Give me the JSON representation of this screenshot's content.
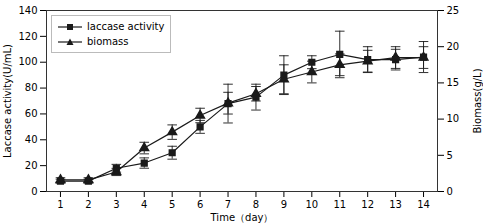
{
  "chart_data": {
    "type": "line",
    "x": [
      1,
      2,
      3,
      4,
      5,
      6,
      7,
      8,
      9,
      10,
      11,
      12,
      13,
      14
    ],
    "xlim": [
      0.5,
      14.5
    ],
    "xticks": [
      1,
      2,
      3,
      4,
      5,
      6,
      7,
      8,
      9,
      10,
      11,
      12,
      13,
      14
    ],
    "xlabel": "Time（day）",
    "ylabel": "Laccase activity(U/mL)",
    "y2label": "Biomass(g/L)",
    "ylim": [
      0,
      140
    ],
    "yticks": [
      0,
      20,
      40,
      60,
      80,
      100,
      120,
      140
    ],
    "y2lim": [
      0,
      25
    ],
    "y2ticks": [
      0,
      5,
      10,
      15,
      20,
      25
    ],
    "grid": false,
    "legend": "upper left",
    "series": [
      {
        "name": "laccase activity",
        "color": "#1a1a1a",
        "marker": "square",
        "values": [
          8,
          8,
          18,
          22,
          30,
          50,
          68,
          73,
          90,
          100,
          106,
          102,
          102,
          104
        ],
        "errors": [
          1.5,
          1.5,
          3,
          4,
          5,
          5,
          15,
          10,
          15,
          5,
          18,
          10,
          8,
          12
        ]
      },
      {
        "name": "biomass",
        "color": "#1a1a1a",
        "marker": "triangle",
        "axis": "y2",
        "values": [
          1.6,
          1.6,
          2.7,
          6.0,
          8.2,
          10.5,
          12.2,
          13.5,
          15.5,
          16.5,
          17.5,
          18.0,
          18.5,
          18.5
        ],
        "errors": [
          0.3,
          0.3,
          0.5,
          0.8,
          1.0,
          1.0,
          1.5,
          1.0,
          2.0,
          1.5,
          1.5,
          1.5,
          1.5,
          1.5
        ]
      }
    ]
  }
}
